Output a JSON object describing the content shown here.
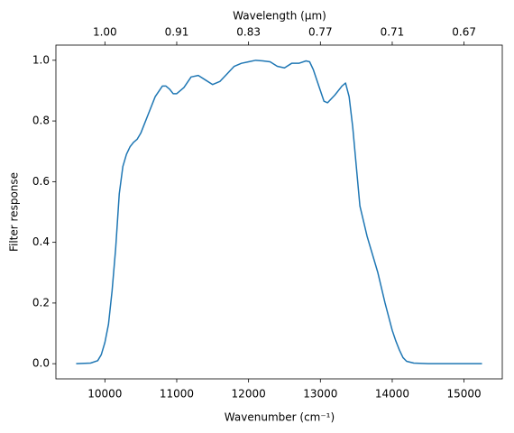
{
  "chart_data": {
    "type": "line",
    "xlabel": "Wavenumber (cm⁻¹)",
    "ylabel": "Filter response",
    "x2label": "Wavelength (μm)",
    "x": [
      9600,
      9800,
      9900,
      9950,
      10000,
      10050,
      10100,
      10150,
      10200,
      10250,
      10300,
      10350,
      10400,
      10450,
      10500,
      10550,
      10600,
      10700,
      10800,
      10850,
      10900,
      10950,
      11000,
      11100,
      11200,
      11300,
      11400,
      11500,
      11600,
      11700,
      11800,
      11900,
      12000,
      12100,
      12200,
      12300,
      12400,
      12500,
      12600,
      12700,
      12800,
      12850,
      12900,
      13000,
      13050,
      13100,
      13200,
      13300,
      13350,
      13400,
      13450,
      13500,
      13550,
      13600,
      13650,
      13700,
      13800,
      13900,
      14000,
      14050,
      14100,
      14150,
      14200,
      14300,
      14500,
      15000,
      15250
    ],
    "series": [
      {
        "color": "#1f77b4",
        "values": [
          0,
          0.002,
          0.01,
          0.03,
          0.07,
          0.13,
          0.24,
          0.38,
          0.56,
          0.65,
          0.69,
          0.715,
          0.73,
          0.74,
          0.76,
          0.79,
          0.82,
          0.88,
          0.915,
          0.915,
          0.905,
          0.89,
          0.89,
          0.91,
          0.945,
          0.95,
          0.935,
          0.92,
          0.93,
          0.955,
          0.98,
          0.99,
          0.995,
          1.0,
          0.998,
          0.995,
          0.98,
          0.975,
          0.99,
          0.99,
          0.998,
          0.995,
          0.97,
          0.9,
          0.865,
          0.86,
          0.885,
          0.915,
          0.925,
          0.88,
          0.78,
          0.65,
          0.52,
          0.47,
          0.42,
          0.38,
          0.3,
          0.2,
          0.11,
          0.075,
          0.045,
          0.02,
          0.008,
          0.002,
          0,
          0,
          0
        ]
      }
    ],
    "xlim": [
      9318,
      15532
    ],
    "ylim": [
      -0.05,
      1.05
    ],
    "xticks": [
      10000,
      11000,
      12000,
      13000,
      14000,
      15000
    ],
    "x2ticks": [
      {
        "value": 10000,
        "label": "1.00"
      },
      {
        "value": 11000,
        "label": "0.91"
      },
      {
        "value": 12000,
        "label": "0.83"
      },
      {
        "value": 13000,
        "label": "0.77"
      },
      {
        "value": 14000,
        "label": "0.71"
      },
      {
        "value": 15000,
        "label": "0.67"
      }
    ],
    "yticks": [
      {
        "value": 0,
        "label": "0.0"
      },
      {
        "value": 0.2,
        "label": "0.2"
      },
      {
        "value": 0.4,
        "label": "0.4"
      },
      {
        "value": 0.6,
        "label": "0.6"
      },
      {
        "value": 0.8,
        "label": "0.8"
      },
      {
        "value": 1.0,
        "label": "1.0"
      }
    ]
  }
}
